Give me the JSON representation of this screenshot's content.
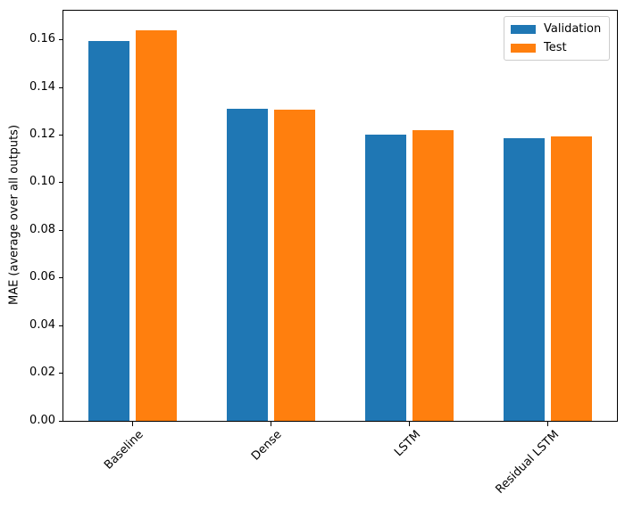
{
  "chart_data": {
    "type": "bar",
    "title": "",
    "xlabel": "",
    "ylabel": "MAE (average over all outputs)",
    "categories": [
      "Baseline",
      "Dense",
      "LSTM",
      "Residual LSTM"
    ],
    "series": [
      {
        "name": "Validation",
        "color": "#1f77b4",
        "values": [
          0.1594,
          0.131,
          0.1203,
          0.1185
        ]
      },
      {
        "name": "Test",
        "color": "#ff7f0e",
        "values": [
          0.1641,
          0.1307,
          0.122,
          0.1196
        ]
      }
    ],
    "ylim": [
      0,
      0.1722
    ],
    "yticks": [
      0.0,
      0.02,
      0.04,
      0.06,
      0.08,
      0.1,
      0.12,
      0.14,
      0.16
    ],
    "ytick_labels": [
      "0.00",
      "0.02",
      "0.04",
      "0.06",
      "0.08",
      "0.10",
      "0.12",
      "0.14",
      "0.16"
    ],
    "x_tick_rotation": 45,
    "grid": false,
    "legend_position": "upper right",
    "spine_color": "#000000",
    "background_color": "#ffffff"
  }
}
